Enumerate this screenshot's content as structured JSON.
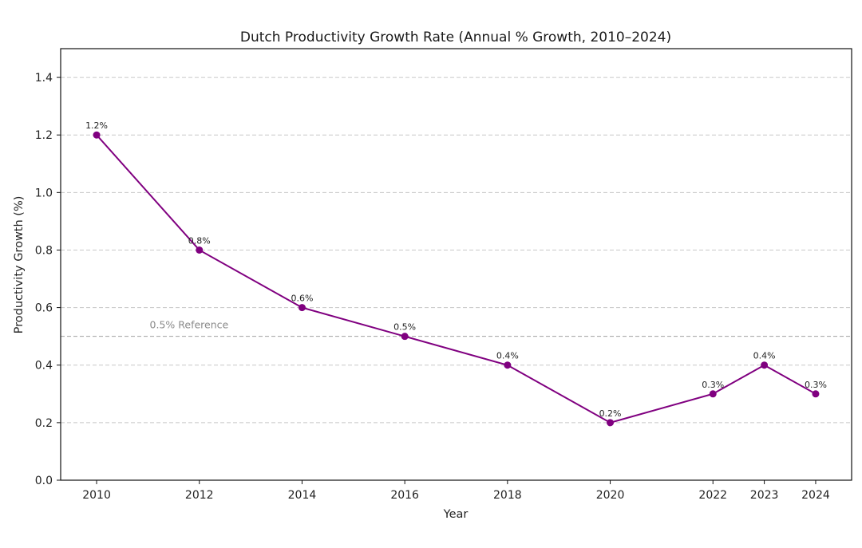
{
  "chart_data": {
    "type": "line",
    "title": "Dutch Productivity Growth Rate (Annual % Growth, 2010–2024)",
    "xlabel": "Year",
    "ylabel": "Productivity Growth (%)",
    "x": [
      2010,
      2012,
      2014,
      2016,
      2018,
      2020,
      2022,
      2023,
      2024
    ],
    "series": [
      {
        "name": "Productivity Growth",
        "values": [
          1.2,
          0.8,
          0.6,
          0.5,
          0.4,
          0.2,
          0.3,
          0.4,
          0.3
        ],
        "data_labels": [
          "1.2%",
          "0.8%",
          "0.6%",
          "0.5%",
          "0.4%",
          "0.2%",
          "0.3%",
          "0.4%",
          "0.3%"
        ],
        "color": "#800080",
        "marker": "circle"
      }
    ],
    "xticks": [
      "2010",
      "2012",
      "2014",
      "2016",
      "2018",
      "2020",
      "2022",
      "2023",
      "2024"
    ],
    "yticks": [
      "0.0",
      "0.2",
      "0.4",
      "0.6",
      "0.8",
      "1.0",
      "1.2",
      "1.4"
    ],
    "ytick_values": [
      0.0,
      0.2,
      0.4,
      0.6,
      0.8,
      1.0,
      1.2,
      1.4
    ],
    "xlim": [
      2009.3,
      2024.7
    ],
    "ylim": [
      0,
      1.5
    ],
    "grid": "horizontal dashed",
    "reference_line": {
      "value": 0.5,
      "label": "0.5% Reference",
      "color": "#a0a0a0"
    },
    "legend": "none"
  }
}
